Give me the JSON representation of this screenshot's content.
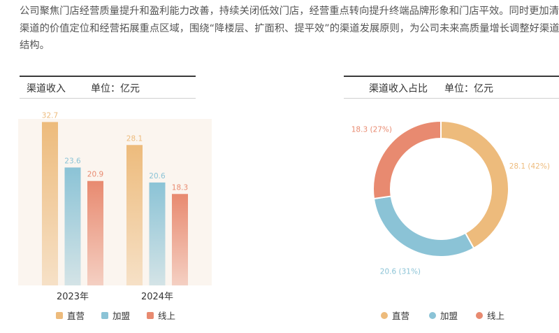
{
  "intro": {
    "lines": [
      "公司聚焦门店经营质量提升和盈利能力改善，持续关闭低效门店，经营重点转向提升终端品牌形象和门店平效。同时更加清晰",
      "渠道的价值定位和经营拓展重点区域，围绕“降楼层、扩面积、提平效”的渠道发展原则，为公司未来高质量增长调整好渠道",
      "结构。"
    ]
  },
  "colors": {
    "direct": "#edbb7c",
    "franchise": "#8bc3d6",
    "online": "#e88a70"
  },
  "bar_panel": {
    "title": "渠道收入",
    "unit": "单位：亿元",
    "legend": [
      "直营",
      "加盟",
      "线上"
    ]
  },
  "pie_panel": {
    "title": "渠道收入占比",
    "unit": "单位：亿元",
    "legend": [
      "直营",
      "加盟",
      "线上"
    ]
  },
  "chart_data": [
    {
      "type": "bar",
      "title": "渠道收入",
      "unit": "亿元",
      "categories": [
        "2023年",
        "2024年"
      ],
      "series": [
        {
          "name": "直营",
          "values": [
            32.7,
            28.1
          ],
          "labels": [
            "32.7",
            "28.1"
          ]
        },
        {
          "name": "加盟",
          "values": [
            23.6,
            20.6
          ],
          "labels": [
            "23.6",
            "20.6"
          ]
        },
        {
          "name": "线上",
          "values": [
            20.9,
            18.3
          ],
          "labels": [
            "20.9",
            "18.3"
          ]
        }
      ],
      "ylim": [
        0,
        35
      ],
      "grid": false,
      "legend": "bottom"
    },
    {
      "type": "pie",
      "style": "donut",
      "title": "渠道收入占比",
      "unit": "亿元",
      "slices": [
        {
          "name": "直营",
          "value": 28.1,
          "label": "28.1 (42%)"
        },
        {
          "name": "加盟",
          "value": 20.6,
          "label": "20.6 (31%)"
        },
        {
          "name": "线上",
          "value": 18.3,
          "label": "18.3 (27%)"
        }
      ],
      "legend": "bottom"
    }
  ]
}
